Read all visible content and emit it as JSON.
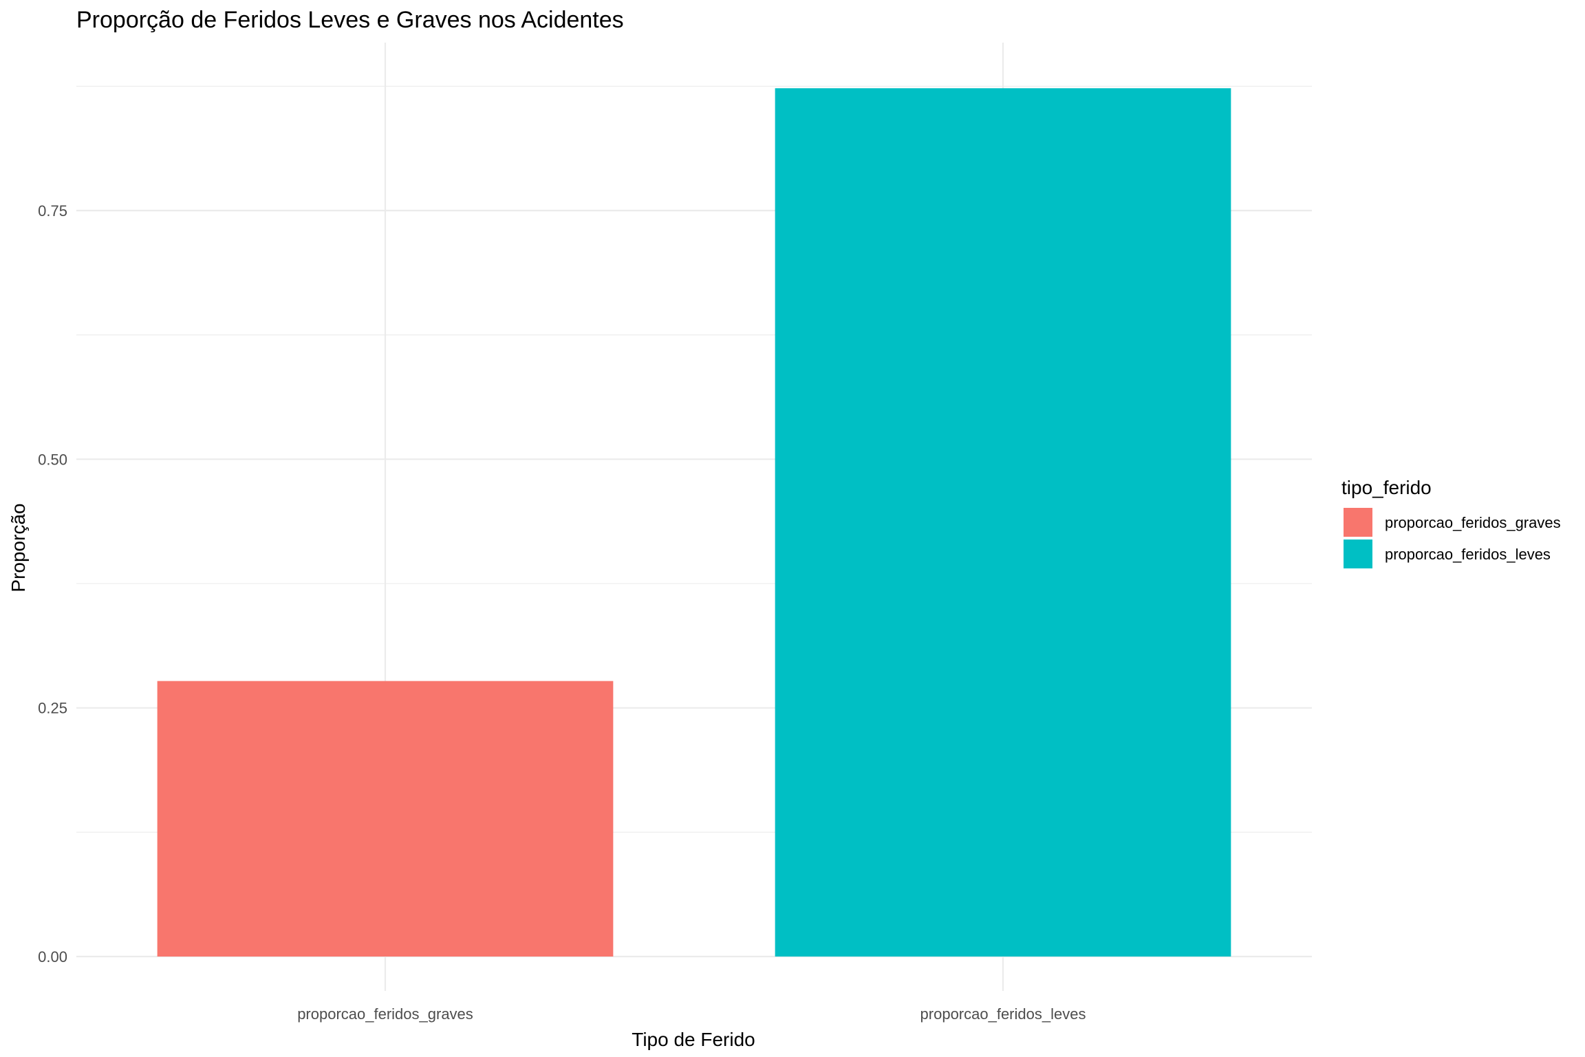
{
  "chart_data": {
    "type": "bar",
    "title": "Proporção de Feridos Leves e Graves nos Acidentes",
    "xlabel": "Tipo de Ferido",
    "ylabel": "Proporção",
    "categories": [
      "proporcao_feridos_graves",
      "proporcao_feridos_leves"
    ],
    "values": [
      0.277,
      0.873
    ],
    "colors": [
      "#F8766D",
      "#00BFC4"
    ],
    "ylim": [
      0,
      0.9
    ],
    "yticks": [
      0.0,
      0.25,
      0.5,
      0.75
    ],
    "ytick_labels": [
      "0.00",
      "0.25",
      "0.50",
      "0.75"
    ],
    "grid": true,
    "legend": {
      "title": "tipo_ferido",
      "position": "right",
      "entries": [
        "proporcao_feridos_graves",
        "proporcao_feridos_leves"
      ]
    }
  }
}
